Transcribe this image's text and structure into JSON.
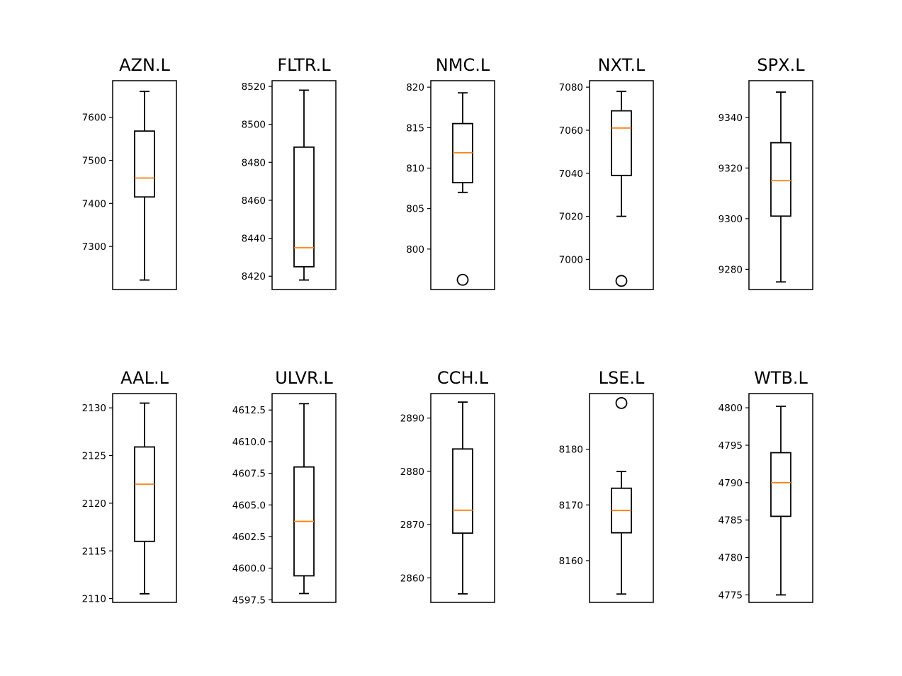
{
  "chart_data": [
    {
      "type": "box",
      "title": "AZN.L",
      "ylim": [
        7200,
        7685
      ],
      "yticks": [
        7300,
        7400,
        7500,
        7600
      ],
      "box": {
        "whisker_low": 7222,
        "q1": 7415,
        "median": 7459,
        "q3": 7568,
        "whisker_high": 7660
      },
      "outliers": []
    },
    {
      "type": "box",
      "title": "FLTR.L",
      "ylim": [
        8413,
        8523
      ],
      "yticks": [
        8420,
        8440,
        8460,
        8480,
        8500,
        8520
      ],
      "box": {
        "whisker_low": 8418,
        "q1": 8425,
        "median": 8435,
        "q3": 8488,
        "whisker_high": 8518
      },
      "outliers": []
    },
    {
      "type": "box",
      "title": "NMC.L",
      "ylim": [
        795,
        820.8
      ],
      "yticks": [
        800,
        805,
        810,
        815,
        820
      ],
      "box": {
        "whisker_low": 807,
        "q1": 808.2,
        "median": 811.9,
        "q3": 815.5,
        "whisker_high": 819.3
      },
      "outliers": [
        796.2
      ]
    },
    {
      "type": "box",
      "title": "NXT.L",
      "ylim": [
        6986,
        7083
      ],
      "yticks": [
        7000,
        7020,
        7040,
        7060,
        7080
      ],
      "box": {
        "whisker_low": 7020,
        "q1": 7039,
        "median": 7061,
        "q3": 7069,
        "whisker_high": 7078
      },
      "outliers": [
        6990
      ]
    },
    {
      "type": "box",
      "title": "SPX.L",
      "ylim": [
        9272,
        9354.5
      ],
      "yticks": [
        9280,
        9300,
        9320,
        9340
      ],
      "box": {
        "whisker_low": 9275,
        "q1": 9301,
        "median": 9315,
        "q3": 9330,
        "whisker_high": 9350
      },
      "outliers": []
    },
    {
      "type": "box",
      "title": "AAL.L",
      "ylim": [
        2109.6,
        2131.5
      ],
      "yticks": [
        2110,
        2115,
        2120,
        2125,
        2130
      ],
      "box": {
        "whisker_low": 2110.5,
        "q1": 2116,
        "median": 2122,
        "q3": 2125.9,
        "whisker_high": 2130.5
      },
      "outliers": []
    },
    {
      "type": "box",
      "title": "ULVR.L",
      "ylim": [
        4597.3,
        4613.8
      ],
      "yticks": [
        4597.5,
        4600.0,
        4602.5,
        4605.0,
        4607.5,
        4610.0,
        4612.5
      ],
      "box": {
        "whisker_low": 4598,
        "q1": 4599.4,
        "median": 4603.7,
        "q3": 4608,
        "whisker_high": 4613
      },
      "outliers": []
    },
    {
      "type": "box",
      "title": "CCH.L",
      "ylim": [
        2855.4,
        2894.6
      ],
      "yticks": [
        2860,
        2870,
        2880,
        2890
      ],
      "box": {
        "whisker_low": 2857,
        "q1": 2868.4,
        "median": 2872.7,
        "q3": 2884.2,
        "whisker_high": 2893
      },
      "outliers": []
    },
    {
      "type": "box",
      "title": "LSE.L",
      "ylim": [
        8152.5,
        8190
      ],
      "yticks": [
        8160,
        8170,
        8180
      ],
      "box": {
        "whisker_low": 8154,
        "q1": 8165,
        "median": 8169,
        "q3": 8173,
        "whisker_high": 8176
      },
      "outliers": [
        8188.3
      ]
    },
    {
      "type": "box",
      "title": "WTB.L",
      "ylim": [
        4774,
        4801.9
      ],
      "yticks": [
        4775,
        4780,
        4785,
        4790,
        4795,
        4800
      ],
      "box": {
        "whisker_low": 4775,
        "q1": 4785.5,
        "median": 4790,
        "q3": 4794,
        "whisker_high": 4800.2
      },
      "outliers": []
    }
  ],
  "colors": {
    "box": "#000000",
    "median": "#ff7f0e",
    "axes": "#000000"
  }
}
